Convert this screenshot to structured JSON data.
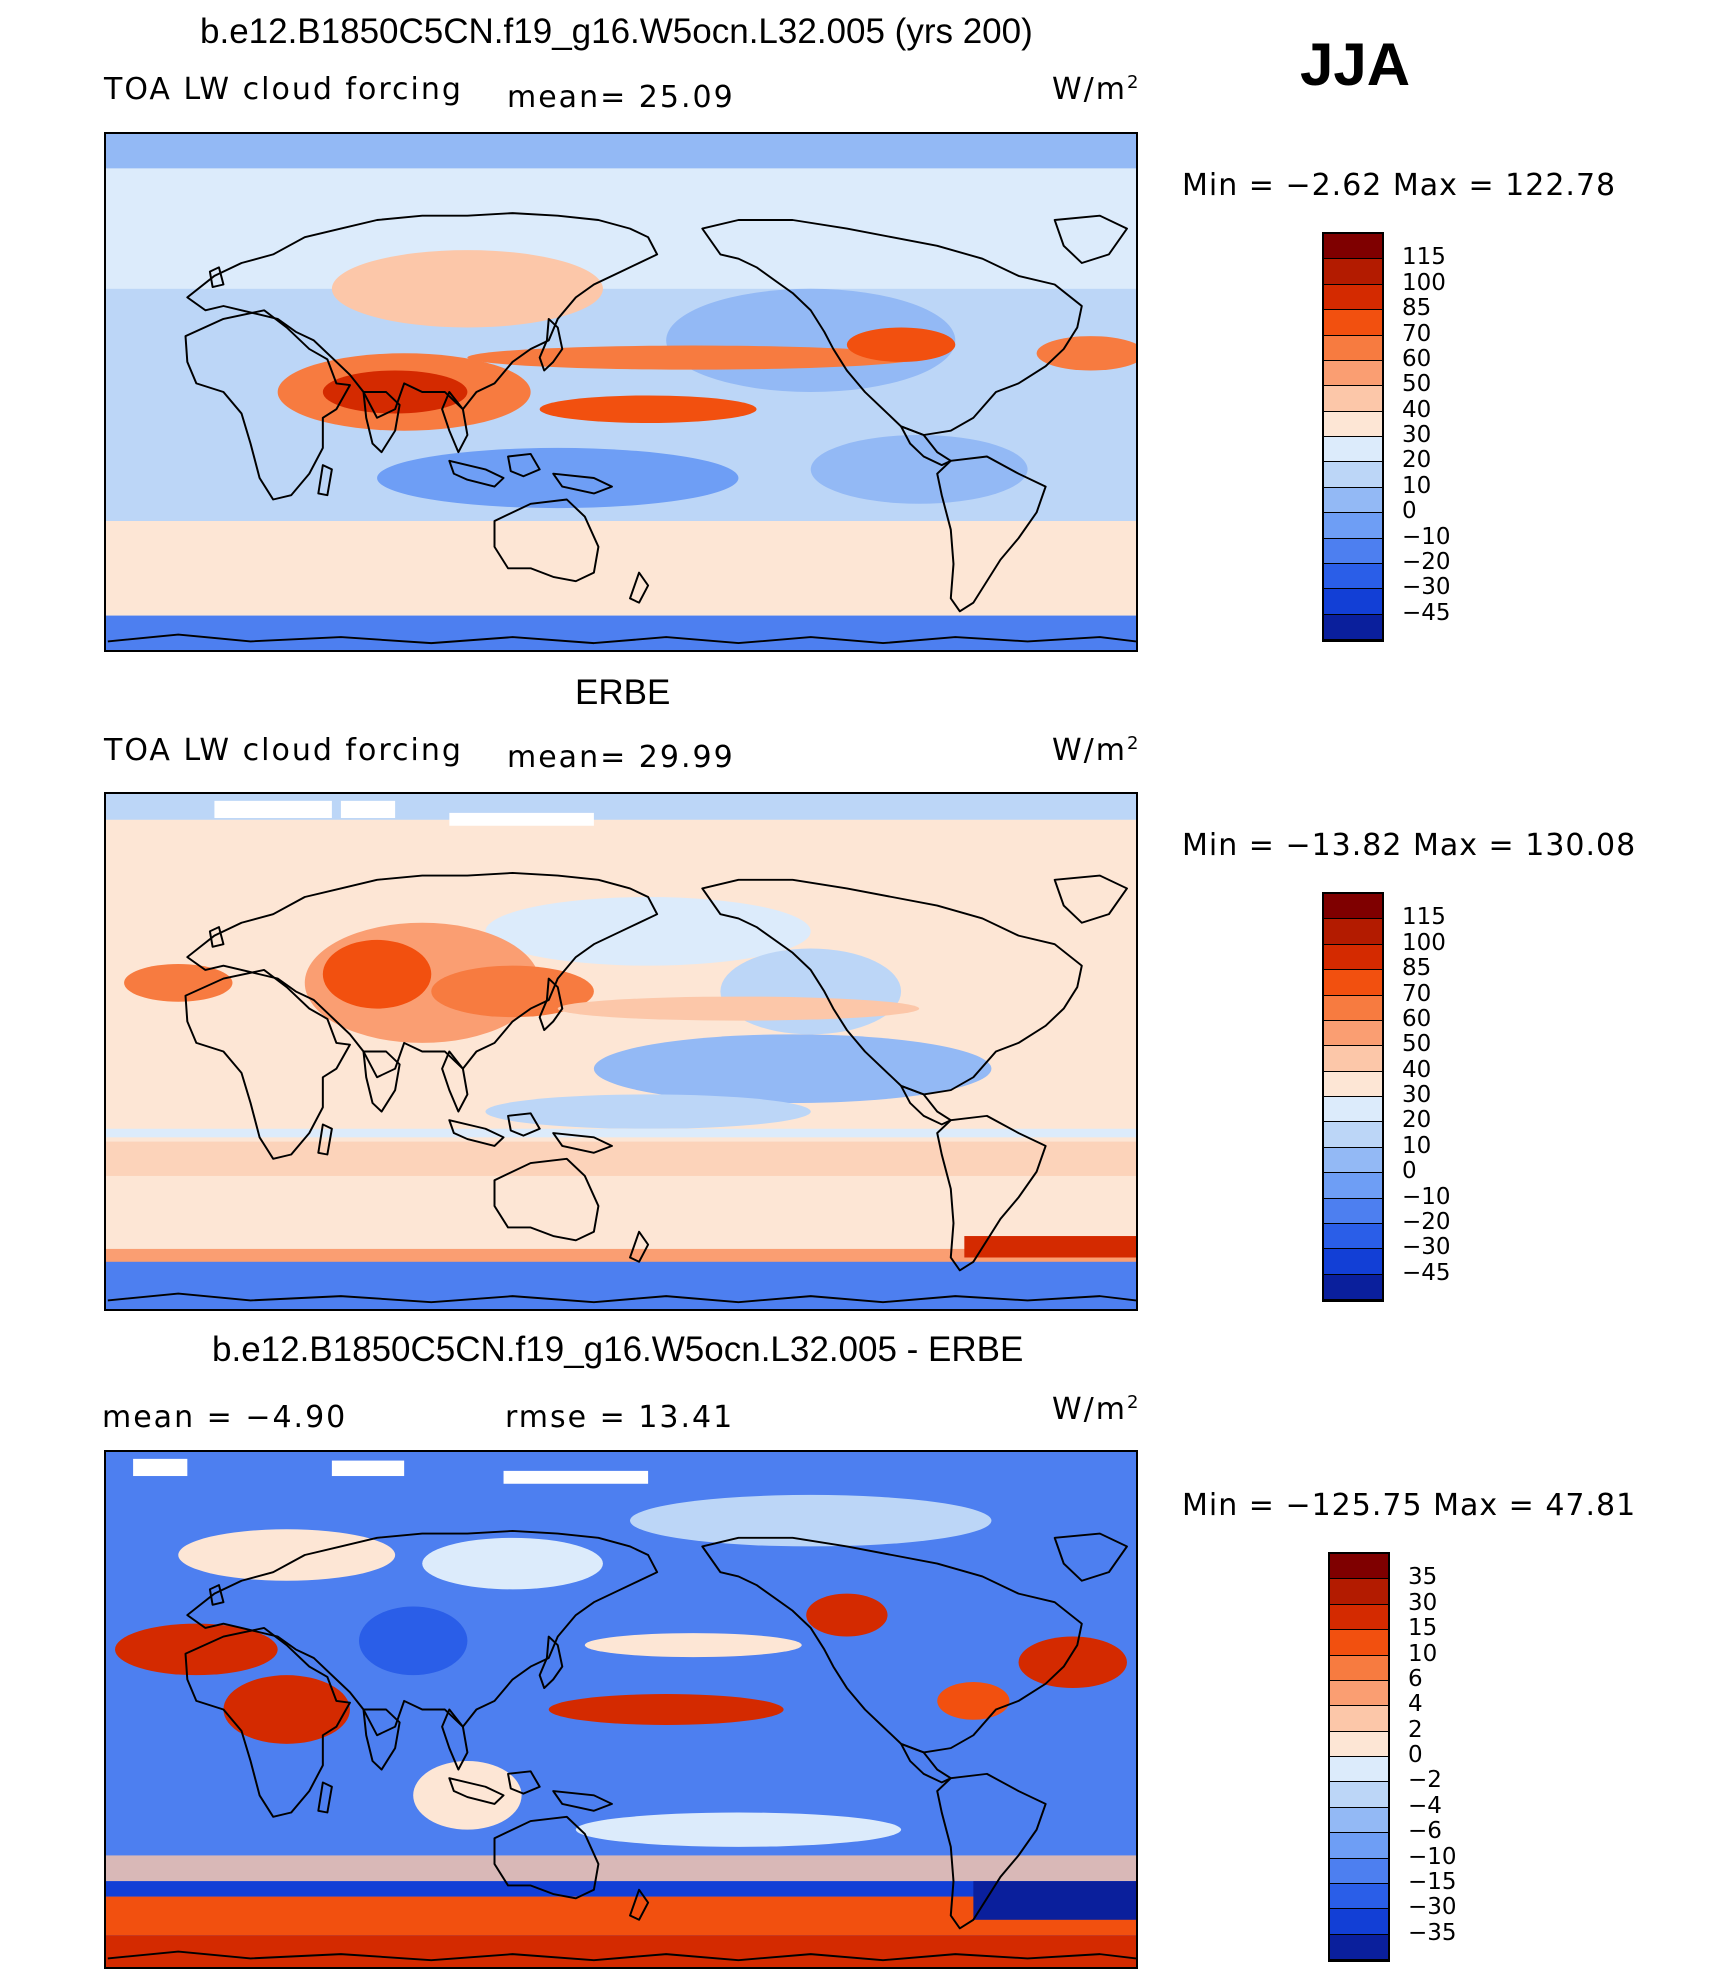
{
  "season": "JJA",
  "unit_symbol": "W/m",
  "unit_exp": "2",
  "panels": {
    "model": {
      "title": "b.e12.B1850C5CN.f19_g16.W5ocn.L32.005 (yrs 200)",
      "variable": "TOA LW cloud forcing",
      "mean_label": "mean=",
      "mean_value": "25.09",
      "min_max": "Min =   −2.62 Max =  122.78"
    },
    "obs": {
      "title": "ERBE",
      "variable": "TOA LW cloud forcing",
      "mean_label": "mean=",
      "mean_value": "29.99",
      "min_max": "Min = −13.82 Max =  130.08"
    },
    "diff": {
      "title": "b.e12.B1850C5CN.f19_g16.W5ocn.L32.005 - ERBE",
      "mean_label": "mean =",
      "mean_value": "−4.90",
      "rmse_label": "rmse =",
      "rmse_value": "13.41",
      "min_max": "Min = −125.75 Max =   47.81"
    }
  },
  "colorbars": {
    "abs": {
      "labels": [
        "115",
        "100",
        "85",
        "70",
        "60",
        "50",
        "40",
        "30",
        "20",
        "10",
        "0",
        "−10",
        "−20",
        "−30",
        "−45"
      ],
      "colors": [
        "#7f0000",
        "#b31b00",
        "#d42a00",
        "#f2500f",
        "#f77b40",
        "#fa9e72",
        "#fcc7a9",
        "#fde6d5",
        "#dcebfb",
        "#bcd6f7",
        "#93b9f5",
        "#6e9ef5",
        "#4d7ff0",
        "#2a5ee8",
        "#123fd6",
        "#0a1f9c"
      ]
    },
    "diff": {
      "labels": [
        "35",
        "30",
        "15",
        "10",
        "6",
        "4",
        "2",
        "0",
        "−2",
        "−4",
        "−6",
        "−10",
        "−15",
        "−30",
        "−35"
      ],
      "colors": [
        "#7f0000",
        "#b31b00",
        "#d42a00",
        "#f2500f",
        "#f77b40",
        "#fa9e72",
        "#fcc7a9",
        "#fde6d5",
        "#dcebfb",
        "#bcd6f7",
        "#93b9f5",
        "#6e9ef5",
        "#4d7ff0",
        "#2a5ee8",
        "#123fd6",
        "#0a1f9c"
      ]
    }
  }
}
